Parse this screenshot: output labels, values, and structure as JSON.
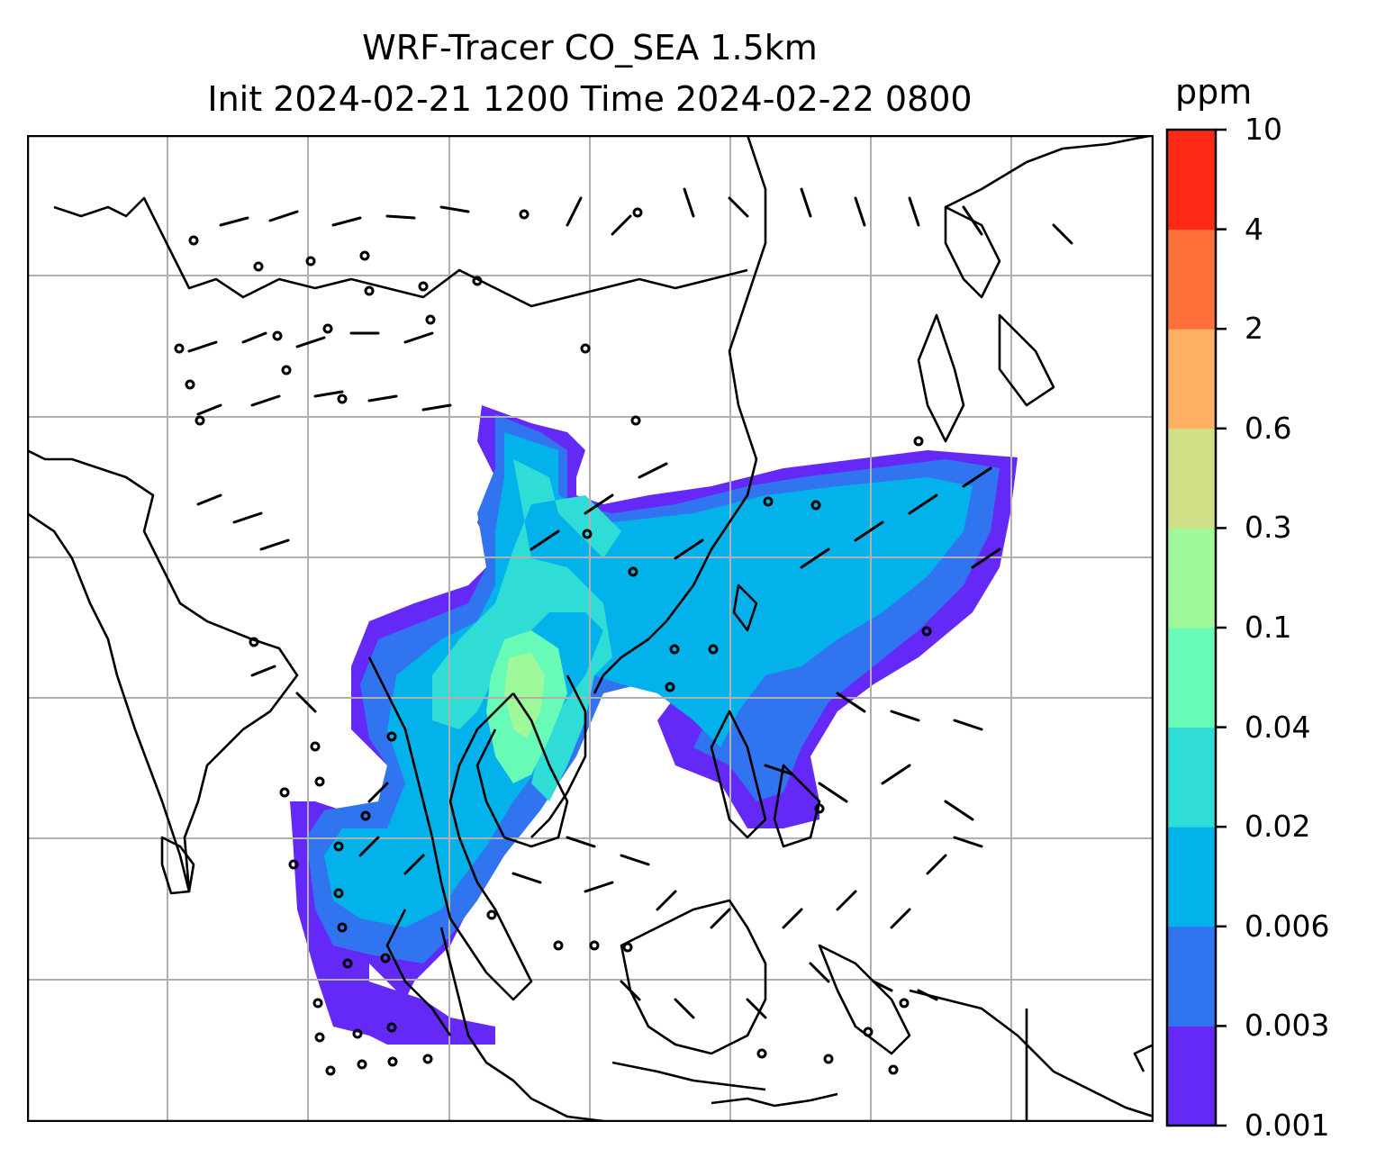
{
  "title": {
    "line1": "WRF-Tracer CO_SEA 1.5km",
    "line2": "Init 2024-02-21 1200 Time 2024-02-22 0800"
  },
  "colorbar": {
    "unit": "ppm",
    "ticks": [
      "0.001",
      "0.003",
      "0.006",
      "0.02",
      "0.04",
      "0.1",
      "0.3",
      "0.6",
      "2",
      "4",
      "10"
    ],
    "colors": [
      "#6429f7",
      "#3174f0",
      "#03b2ea",
      "#2fdcd6",
      "#68fbb7",
      "#9ff99b",
      "#d0e087",
      "#ffb062",
      "#ff6f3a",
      "#ff2a16"
    ]
  },
  "map": {
    "gridlines": true,
    "region": "Southeast Asia",
    "overlays": [
      "coastlines",
      "country borders",
      "wind barbs",
      "tracer concentration contours"
    ]
  }
}
